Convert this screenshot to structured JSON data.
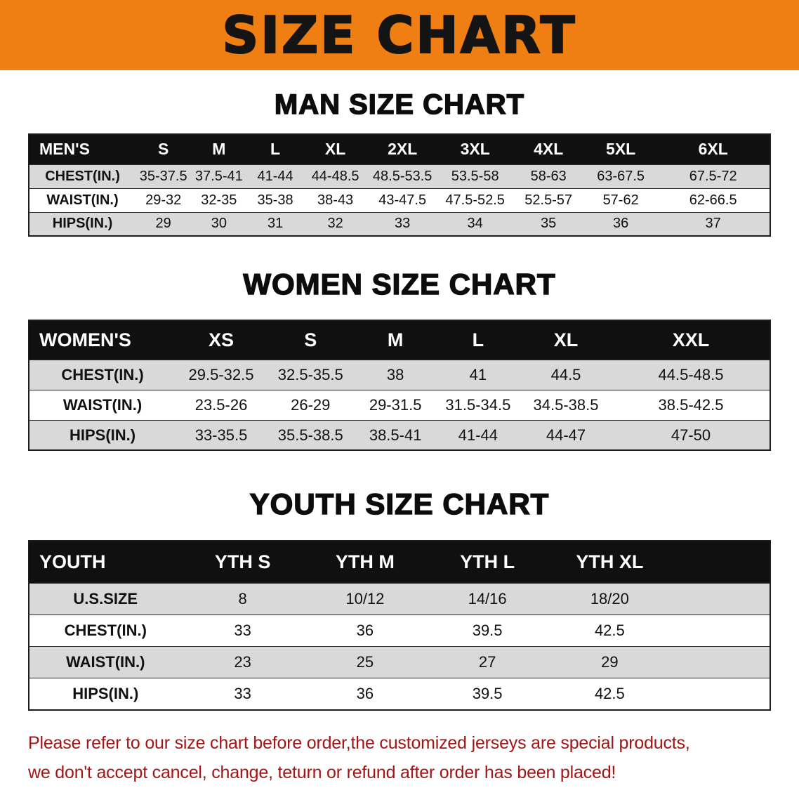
{
  "banner": {
    "title": "SIZE CHART"
  },
  "men": {
    "heading": "MAN SIZE CHART",
    "header": [
      "MEN'S",
      "S",
      "M",
      "L",
      "XL",
      "2XL",
      "3XL",
      "4XL",
      "5XL",
      "6XL"
    ],
    "rows": [
      [
        "CHEST(IN.)",
        "35-37.5",
        "37.5-41",
        "41-44",
        "44-48.5",
        "48.5-53.5",
        "53.5-58",
        "58-63",
        "63-67.5",
        "67.5-72"
      ],
      [
        "WAIST(IN.)",
        "29-32",
        "32-35",
        "35-38",
        "38-43",
        "43-47.5",
        "47.5-52.5",
        "52.5-57",
        "57-62",
        "62-66.5"
      ],
      [
        "HIPS(IN.)",
        "29",
        "30",
        "31",
        "32",
        "33",
        "34",
        "35",
        "36",
        "37"
      ]
    ]
  },
  "women": {
    "heading": "WOMEN SIZE CHART",
    "header": [
      "WOMEN'S",
      "XS",
      "S",
      "M",
      "L",
      "XL",
      "XXL"
    ],
    "rows": [
      [
        "CHEST(IN.)",
        "29.5-32.5",
        "32.5-35.5",
        "38",
        "41",
        "44.5",
        "44.5-48.5"
      ],
      [
        "WAIST(IN.)",
        "23.5-26",
        "26-29",
        "29-31.5",
        "31.5-34.5",
        "34.5-38.5",
        "38.5-42.5"
      ],
      [
        "HIPS(IN.)",
        "33-35.5",
        "35.5-38.5",
        "38.5-41",
        "41-44",
        "44-47",
        "47-50"
      ]
    ]
  },
  "youth": {
    "heading": "YOUTH SIZE CHART",
    "header": [
      "YOUTH",
      "YTH S",
      "YTH M",
      "YTH L",
      "YTH XL"
    ],
    "rows": [
      [
        "U.S.SIZE",
        "8",
        "10/12",
        "14/16",
        "18/20"
      ],
      [
        "CHEST(IN.)",
        "33",
        "36",
        "39.5",
        "42.5"
      ],
      [
        "WAIST(IN.)",
        "23",
        "25",
        "27",
        "29"
      ],
      [
        "HIPS(IN.)",
        "33",
        "36",
        "39.5",
        "42.5"
      ]
    ]
  },
  "disclaimer": {
    "line1": "Please refer to our size chart before order,the customized jerseys are special products,",
    "line2": "we don't accept cancel, change, teturn or refund after order has been placed!"
  },
  "colors": {
    "banner": "#f07f13",
    "table_header_bg": "#101010",
    "row_stripe": "#d9d9d9",
    "disclaimer_text": "#a31515"
  }
}
